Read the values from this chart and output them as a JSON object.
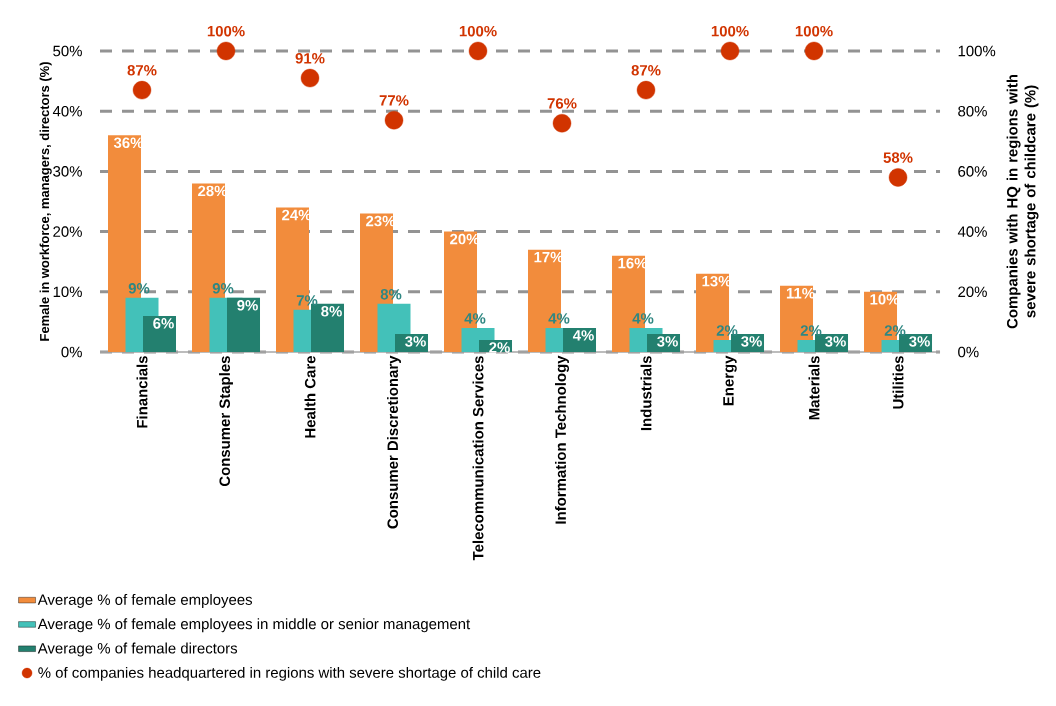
{
  "chart_data": {
    "type": "bar",
    "categories": [
      "Financials",
      "Consumer Staples",
      "Health Care",
      "Consumer Discretionary",
      "Telecommunication Services",
      "Information Technology",
      "Industrials",
      "Energy",
      "Materials",
      "Utilities"
    ],
    "ylabel": "Female in workforce, managers, directors (%)",
    "y2label": "Companies  with HQ in regions with severe shortage of childcare  (%)",
    "ylim": [
      0,
      50
    ],
    "yticks": [
      {
        "value": 0,
        "label": "0%"
      },
      {
        "value": 10,
        "label": "10%"
      },
      {
        "value": 20,
        "label": "20%"
      },
      {
        "value": 30,
        "label": "30%"
      },
      {
        "value": 40,
        "label": "40%"
      },
      {
        "value": 50,
        "label": "50%"
      }
    ],
    "y2lim": [
      0,
      100
    ],
    "y2ticks": [
      {
        "value": 0,
        "label": "0%"
      },
      {
        "value": 20,
        "label": "20%"
      },
      {
        "value": 40,
        "label": "40%"
      },
      {
        "value": 60,
        "label": "60%"
      },
      {
        "value": 80,
        "label": "80%"
      },
      {
        "value": 100,
        "label": "100%"
      }
    ],
    "grid": "y",
    "legend": "bottom",
    "series": [
      {
        "name": "Average % of female employees",
        "color": "#f28c3c",
        "values": [
          36,
          28,
          24,
          23,
          20,
          17,
          16,
          13,
          11,
          10
        ],
        "value_labels": [
          "36%",
          "28%",
          "24%",
          "23%",
          "20%",
          "17%",
          "16%",
          "13%",
          "11%",
          "10%"
        ]
      },
      {
        "name": "Average % of female employees in middle or senior management",
        "color": "#43c1b9",
        "values": [
          9,
          9,
          7,
          8,
          4,
          4,
          4,
          2,
          2,
          2
        ],
        "value_labels": [
          "9%",
          "9%",
          "7%",
          "8%",
          "4%",
          "4%",
          "4%",
          "2%",
          "2%",
          "2%"
        ]
      },
      {
        "name": "Average % of female directors",
        "color": "#23806f",
        "values": [
          6,
          9,
          8,
          3,
          2,
          4,
          3,
          3,
          3,
          3
        ],
        "value_labels": [
          "6%",
          "9%",
          "8%",
          "3%",
          "2%",
          "4%",
          "3%",
          "3%",
          "3%",
          "3%"
        ]
      },
      {
        "name": "% of companies headquartered in regions with severe shortage of child care",
        "type": "scatter",
        "axis": "y2",
        "color": "#d13400",
        "values": [
          87,
          100,
          91,
          77,
          100,
          76,
          87,
          100,
          100,
          58
        ],
        "value_labels": [
          "87%",
          "100%",
          "91%",
          "77%",
          "100%",
          "76%",
          "87%",
          "100%",
          "100%",
          "58%"
        ]
      }
    ]
  }
}
